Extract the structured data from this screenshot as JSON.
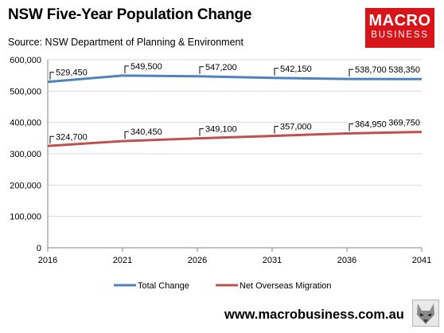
{
  "header": {
    "title": "NSW Five-Year Population Change",
    "subtitle": "Source: NSW Department of Planning & Environment"
  },
  "logo": {
    "line1": "MACRO",
    "line2": "BUSINESS"
  },
  "footer": {
    "website": "www.macrobusiness.com.au",
    "icon": "wolf-icon"
  },
  "colors": {
    "total": "#4f81bd",
    "migration": "#c0504d",
    "brand": "#d7141a"
  },
  "chart_data": {
    "type": "line",
    "title": "NSW Five-Year Population Change",
    "subtitle": "Source: NSW Department of Planning & Environment",
    "x": [
      "2016",
      "2021",
      "2026",
      "2031",
      "2036",
      "2041"
    ],
    "ylim": [
      0,
      600000
    ],
    "yticks": [
      "0",
      "100,000",
      "200,000",
      "300,000",
      "400,000",
      "500,000",
      "600,000"
    ],
    "ytick_values": [
      0,
      100000,
      200000,
      300000,
      400000,
      500000,
      600000
    ],
    "grid": true,
    "legend_position": "bottom",
    "series": [
      {
        "name": "Total Change",
        "color": "#4f81bd",
        "values": [
          529450,
          549500,
          547200,
          542150,
          538700,
          538350
        ],
        "labels": [
          "529,450",
          "549,500",
          "547,200",
          "542,150",
          "538,700",
          "538,350"
        ]
      },
      {
        "name": "Net Overseas Migration",
        "color": "#c0504d",
        "values": [
          324700,
          340450,
          349100,
          357000,
          364950,
          369750
        ],
        "labels": [
          "324,700",
          "340,450",
          "349,100",
          "357,000",
          "364,950",
          "369,750"
        ]
      }
    ]
  }
}
